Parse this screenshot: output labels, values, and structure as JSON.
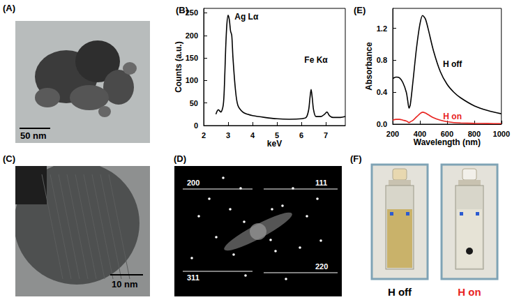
{
  "panels": {
    "A": {
      "label": "(A)",
      "scale_bar": "50 nm"
    },
    "C": {
      "label": "(C)",
      "scale_bar": "10 nm"
    },
    "D": {
      "label": "(D)",
      "rings": [
        "200",
        "111",
        "311",
        "220"
      ]
    },
    "F": {
      "label": "(F)",
      "photos": [
        {
          "caption": "H off",
          "color": "#000000"
        },
        {
          "caption": "H on",
          "color": "#e8231f"
        }
      ]
    }
  },
  "chart_data": [
    {
      "type": "line",
      "title": "(B)",
      "x_label": "keV",
      "y_label": "Counts (a.u.)",
      "x": [
        2.5,
        2.6,
        2.7,
        2.8,
        2.85,
        2.9,
        2.95,
        3.0,
        3.05,
        3.1,
        3.15,
        3.2,
        3.3,
        3.4,
        3.6,
        3.8,
        4.0,
        4.5,
        5.0,
        5.5,
        6.0,
        6.2,
        6.3,
        6.35,
        6.4,
        6.45,
        6.5,
        6.6,
        6.8,
        6.95,
        7.05,
        7.15,
        7.3,
        7.6,
        7.8
      ],
      "values": [
        25,
        35,
        30,
        45,
        90,
        170,
        225,
        245,
        235,
        210,
        200,
        150,
        80,
        45,
        30,
        25,
        22,
        18,
        15,
        14,
        15,
        18,
        35,
        60,
        80,
        60,
        35,
        20,
        20,
        25,
        30,
        22,
        18,
        18,
        20
      ],
      "color": "#000000",
      "xlim": [
        2,
        7.8
      ],
      "xticks": [
        2,
        3,
        4,
        5,
        6,
        7
      ],
      "ylim": [
        0,
        260
      ],
      "yticks": [
        0,
        50,
        100,
        150,
        200,
        250
      ],
      "grid": false,
      "annotations": [
        {
          "text": "Ag Lα",
          "x": 3.75,
          "y": 242,
          "color": "#000000"
        },
        {
          "text": "Fe Kα",
          "x": 6.6,
          "y": 145,
          "color": "#000000"
        }
      ]
    },
    {
      "type": "line",
      "title": "(E)",
      "x_label": "Wavelength (nm)",
      "y_label": "Absorbance",
      "x": [
        200,
        225,
        250,
        275,
        300,
        310,
        320,
        330,
        350,
        375,
        400,
        420,
        440,
        460,
        500,
        550,
        600,
        650,
        700,
        800,
        900,
        1000
      ],
      "series": [
        {
          "color": "#000000",
          "values": [
            0.57,
            0.59,
            0.58,
            0.52,
            0.4,
            0.3,
            0.2,
            0.25,
            0.55,
            0.95,
            1.25,
            1.36,
            1.32,
            1.2,
            0.92,
            0.66,
            0.5,
            0.4,
            0.33,
            0.23,
            0.17,
            0.13
          ]
        },
        {
          "color": "#e8231f",
          "values": [
            0.05,
            0.06,
            0.06,
            0.05,
            0.04,
            0.03,
            0.02,
            0.03,
            0.05,
            0.09,
            0.13,
            0.15,
            0.14,
            0.12,
            0.08,
            0.05,
            0.03,
            0.02,
            0.015,
            0.01,
            0.008,
            0.006
          ]
        }
      ],
      "xlim": [
        200,
        1000
      ],
      "xticks": [
        200,
        400,
        600,
        800,
        1000
      ],
      "ylim": [
        0,
        1.45
      ],
      "yticks": [
        {
          "value": 0,
          "label": "0.0"
        },
        0.4,
        0.8,
        1.2
      ],
      "grid": false,
      "annotations": [
        {
          "text": "H off",
          "x": 640,
          "y": 0.75,
          "color": "#000000"
        },
        {
          "text": "H on",
          "x": 640,
          "y": 0.1,
          "color": "#e8231f"
        }
      ]
    }
  ]
}
